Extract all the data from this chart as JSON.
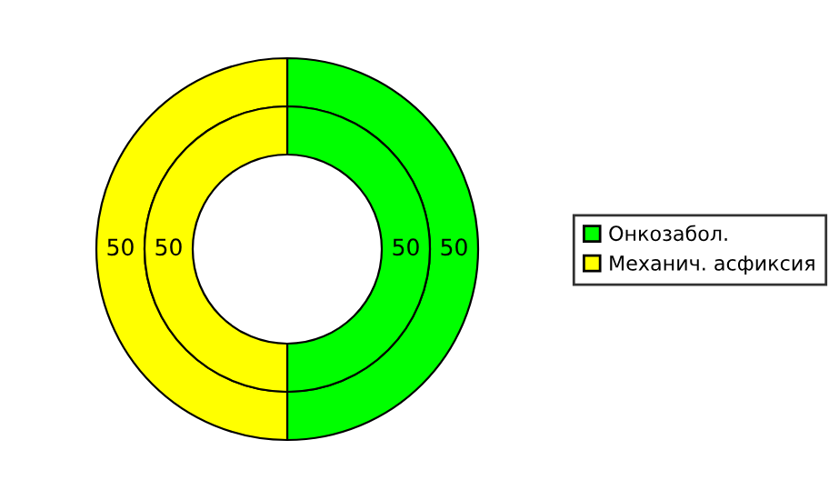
{
  "chart_data": {
    "type": "donut",
    "categories": [
      "Онкозабол.",
      "Механич. асфиксия"
    ],
    "colors": [
      "#00ff00",
      "#ffff00"
    ],
    "series": [
      {
        "values": [
          50,
          50
        ]
      },
      {
        "values": [
          50,
          50
        ]
      }
    ],
    "data_labels": true,
    "legend": "right"
  }
}
